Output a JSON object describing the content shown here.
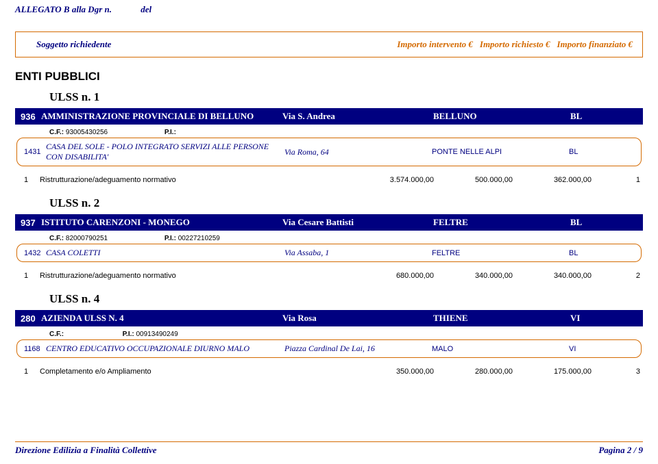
{
  "top": {
    "allegato": "ALLEGATO B  alla Dgr n.",
    "del": "del"
  },
  "header": {
    "soggetto": "Soggetto richiedente",
    "intervento": "Importo intervento €",
    "richiesto": "Importo richiesto €",
    "finanziato": "Importo finanziato €"
  },
  "enti": "ENTI PUBBLICI",
  "sections": [
    {
      "ulss": "ULSS n.  1",
      "band": {
        "id": "936",
        "name": "AMMINISTRAZIONE PROVINCIALE DI BELLUNO",
        "addr": "Via S. Andrea",
        "city": "BELLUNO",
        "prov": "BL"
      },
      "cfpi": {
        "cf_label": "C.F.:",
        "cf": "93005430256",
        "pi_label": "P.I.:",
        "pi": ""
      },
      "box": {
        "id": "1431",
        "name": "CASA DEL SOLE - POLO INTEGRATO SERVIZI ALLE PERSONE CON DISABILITA'",
        "addr": "Via Roma, 64",
        "city": "PONTE NELLE ALPI",
        "prov": "BL"
      },
      "work": {
        "n": "1",
        "desc": "Ristrutturazione/adeguamento normativo",
        "v1": "3.574.000,00",
        "v2": "500.000,00",
        "v3": "362.000,00",
        "seq": "1"
      }
    },
    {
      "ulss": "ULSS n.  2",
      "band": {
        "id": "937",
        "name": "ISTITUTO CARENZONI - MONEGO",
        "addr": "Via Cesare Battisti",
        "city": "FELTRE",
        "prov": "BL"
      },
      "cfpi": {
        "cf_label": "C.F.:",
        "cf": "82000790251",
        "pi_label": "P.I.:",
        "pi": "00227210259"
      },
      "box": {
        "id": "1432",
        "name": "CASA COLETTI",
        "addr": "Via Assaba, 1",
        "city": "FELTRE",
        "prov": "BL"
      },
      "work": {
        "n": "1",
        "desc": "Ristrutturazione/adeguamento normativo",
        "v1": "680.000,00",
        "v2": "340.000,00",
        "v3": "340.000,00",
        "seq": "2"
      }
    },
    {
      "ulss": "ULSS n.  4",
      "band": {
        "id": "280",
        "name": "AZIENDA ULSS N. 4",
        "addr": "Via Rosa",
        "city": "THIENE",
        "prov": "VI"
      },
      "cfpi": {
        "cf_label": "C.F.:",
        "cf": "",
        "pi_label": "P.I.:",
        "pi": "00913490249"
      },
      "box": {
        "id": "1168",
        "name": "CENTRO EDUCATIVO OCCUPAZIONALE DIURNO MALO",
        "addr": "Piazza Cardinal De Lai, 16",
        "city": "MALO",
        "prov": "VI"
      },
      "work": {
        "n": "1",
        "desc": "Completamento e/o Ampliamento",
        "v1": "350.000,00",
        "v2": "280.000,00",
        "v3": "175.000,00",
        "seq": "3"
      }
    }
  ],
  "footer": {
    "left": "Direzione Edilizia a Finalità Collettive",
    "right": "Pagina 2 / 9"
  }
}
